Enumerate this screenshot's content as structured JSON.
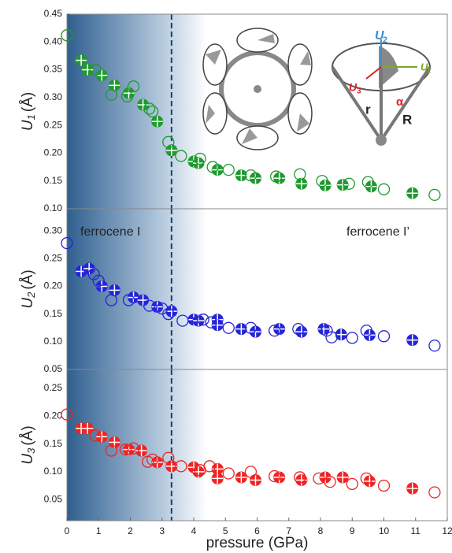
{
  "chart_data": [
    {
      "type": "scatter",
      "ylabel_symbol": "U",
      "ylabel_subscript": "1",
      "ylabel_unit": "(Å)",
      "xlim": [
        0,
        12
      ],
      "ylim": [
        0.1,
        0.45
      ],
      "yticks": [
        {
          "value": 0.1,
          "label": "0.10"
        },
        0.15,
        {
          "value": 0.2,
          "label": "0.20"
        },
        0.25,
        {
          "value": 0.3,
          "label": "0.30"
        },
        0.35,
        {
          "value": 0.4,
          "label": "0.40"
        },
        0.45
      ],
      "vline": 3.3,
      "inset_labels": [
        "U",
        "2",
        "U",
        "1",
        "U",
        "3",
        "r",
        "α",
        "R"
      ],
      "series": [
        {
          "color": "#1e9a2e",
          "marker": "filled",
          "x": [
            0.45,
            0.65,
            1.1,
            1.5,
            1.95,
            2.4,
            2.85,
            3.3,
            4.0,
            4.15,
            4.75,
            5.5,
            5.95,
            6.7,
            7.4,
            8.15,
            8.7,
            9.6,
            10.9
          ],
          "values": [
            0.367,
            0.35,
            0.34,
            0.322,
            0.308,
            0.287,
            0.257,
            0.205,
            0.185,
            0.182,
            0.17,
            0.16,
            0.155,
            0.155,
            0.145,
            0.142,
            0.143,
            0.14,
            0.128
          ]
        },
        {
          "color": "#1e9a2e",
          "marker": "open",
          "x": [
            0,
            0.9,
            1.4,
            1.9,
            2.1,
            2.6,
            2.7,
            3.2,
            3.6,
            4.2,
            4.6,
            5.1,
            5.8,
            6.6,
            7.35,
            8.05,
            8.9,
            9.5,
            10.0,
            11.6
          ],
          "values": [
            0.412,
            0.35,
            0.305,
            0.302,
            0.32,
            0.28,
            0.275,
            0.22,
            0.195,
            0.19,
            0.175,
            0.17,
            0.16,
            0.158,
            0.162,
            0.15,
            0.145,
            0.148,
            0.135,
            0.125
          ]
        }
      ]
    },
    {
      "type": "scatter",
      "ylabel_symbol": "U",
      "ylabel_subscript": "2",
      "ylabel_unit": "(Å)",
      "xlim": [
        0,
        12
      ],
      "ylim": [
        0.05,
        0.34
      ],
      "yticks": [
        0.05,
        {
          "value": 0.1,
          "label": "0.10"
        },
        0.15,
        {
          "value": 0.2,
          "label": "0.20"
        },
        0.25,
        {
          "value": 0.3,
          "label": "0.30"
        }
      ],
      "vline": 3.3,
      "annotations": [
        "ferrocene I",
        "ferrocene I’"
      ],
      "series": [
        {
          "color": "#2424d8",
          "marker": "filled",
          "x": [
            0.45,
            0.7,
            1.1,
            1.5,
            2.1,
            2.4,
            2.85,
            3.3,
            4.0,
            4.15,
            4.75,
            4.75,
            5.5,
            5.95,
            6.7,
            7.4,
            8.1,
            8.65,
            9.55,
            10.9
          ],
          "values": [
            0.227,
            0.232,
            0.2,
            0.193,
            0.18,
            0.175,
            0.163,
            0.155,
            0.14,
            0.138,
            0.14,
            0.13,
            0.123,
            0.118,
            0.123,
            0.118,
            0.123,
            0.113,
            0.112,
            0.103
          ]
        },
        {
          "color": "#2424d8",
          "marker": "open",
          "x": [
            0,
            0.85,
            1.0,
            1.4,
            1.95,
            2.6,
            3.0,
            3.2,
            3.65,
            4.3,
            4.55,
            5.1,
            5.8,
            6.55,
            7.3,
            8.2,
            8.35,
            9.0,
            9.45,
            10.0,
            11.6
          ],
          "values": [
            0.278,
            0.222,
            0.21,
            0.175,
            0.175,
            0.165,
            0.16,
            0.15,
            0.138,
            0.14,
            0.135,
            0.125,
            0.125,
            0.12,
            0.123,
            0.12,
            0.108,
            0.107,
            0.12,
            0.11,
            0.093
          ]
        }
      ]
    },
    {
      "type": "scatter",
      "ylabel_symbol": "U",
      "ylabel_subscript": "3",
      "ylabel_unit": "(Å)",
      "xlabel": "pressure (GPa)",
      "xlim": [
        0,
        12
      ],
      "ylim": [
        0.012,
        0.284
      ],
      "xticks": [
        0,
        1,
        2,
        3,
        4,
        5,
        6,
        7,
        8,
        9,
        10,
        11,
        12
      ],
      "yticks": [
        0.05,
        {
          "value": 0.1,
          "label": "0.10"
        },
        0.15,
        {
          "value": 0.2,
          "label": "0.20"
        },
        0.25
      ],
      "vline": 3.3,
      "series": [
        {
          "color": "#ee2424",
          "marker": "filled",
          "x": [
            0.45,
            0.65,
            1.1,
            1.5,
            1.95,
            2.35,
            2.85,
            3.3,
            4.0,
            4.15,
            4.75,
            4.75,
            5.5,
            5.95,
            6.7,
            7.4,
            8.15,
            8.7,
            9.55,
            10.9
          ],
          "values": [
            0.178,
            0.178,
            0.163,
            0.153,
            0.14,
            0.138,
            0.117,
            0.11,
            0.108,
            0.1,
            0.105,
            0.088,
            0.09,
            0.085,
            0.09,
            0.085,
            0.09,
            0.09,
            0.083,
            0.07
          ]
        },
        {
          "color": "#ee2424",
          "marker": "open",
          "x": [
            0,
            0.9,
            1.4,
            1.85,
            2.1,
            2.55,
            2.7,
            3.2,
            3.6,
            4.2,
            4.5,
            5.1,
            5.8,
            6.55,
            7.35,
            7.95,
            8.3,
            9.0,
            9.45,
            10.0,
            11.6
          ],
          "values": [
            0.203,
            0.165,
            0.138,
            0.14,
            0.142,
            0.118,
            0.122,
            0.125,
            0.11,
            0.103,
            0.11,
            0.097,
            0.1,
            0.092,
            0.09,
            0.088,
            0.082,
            0.078,
            0.088,
            0.075,
            0.063
          ]
        }
      ]
    }
  ]
}
